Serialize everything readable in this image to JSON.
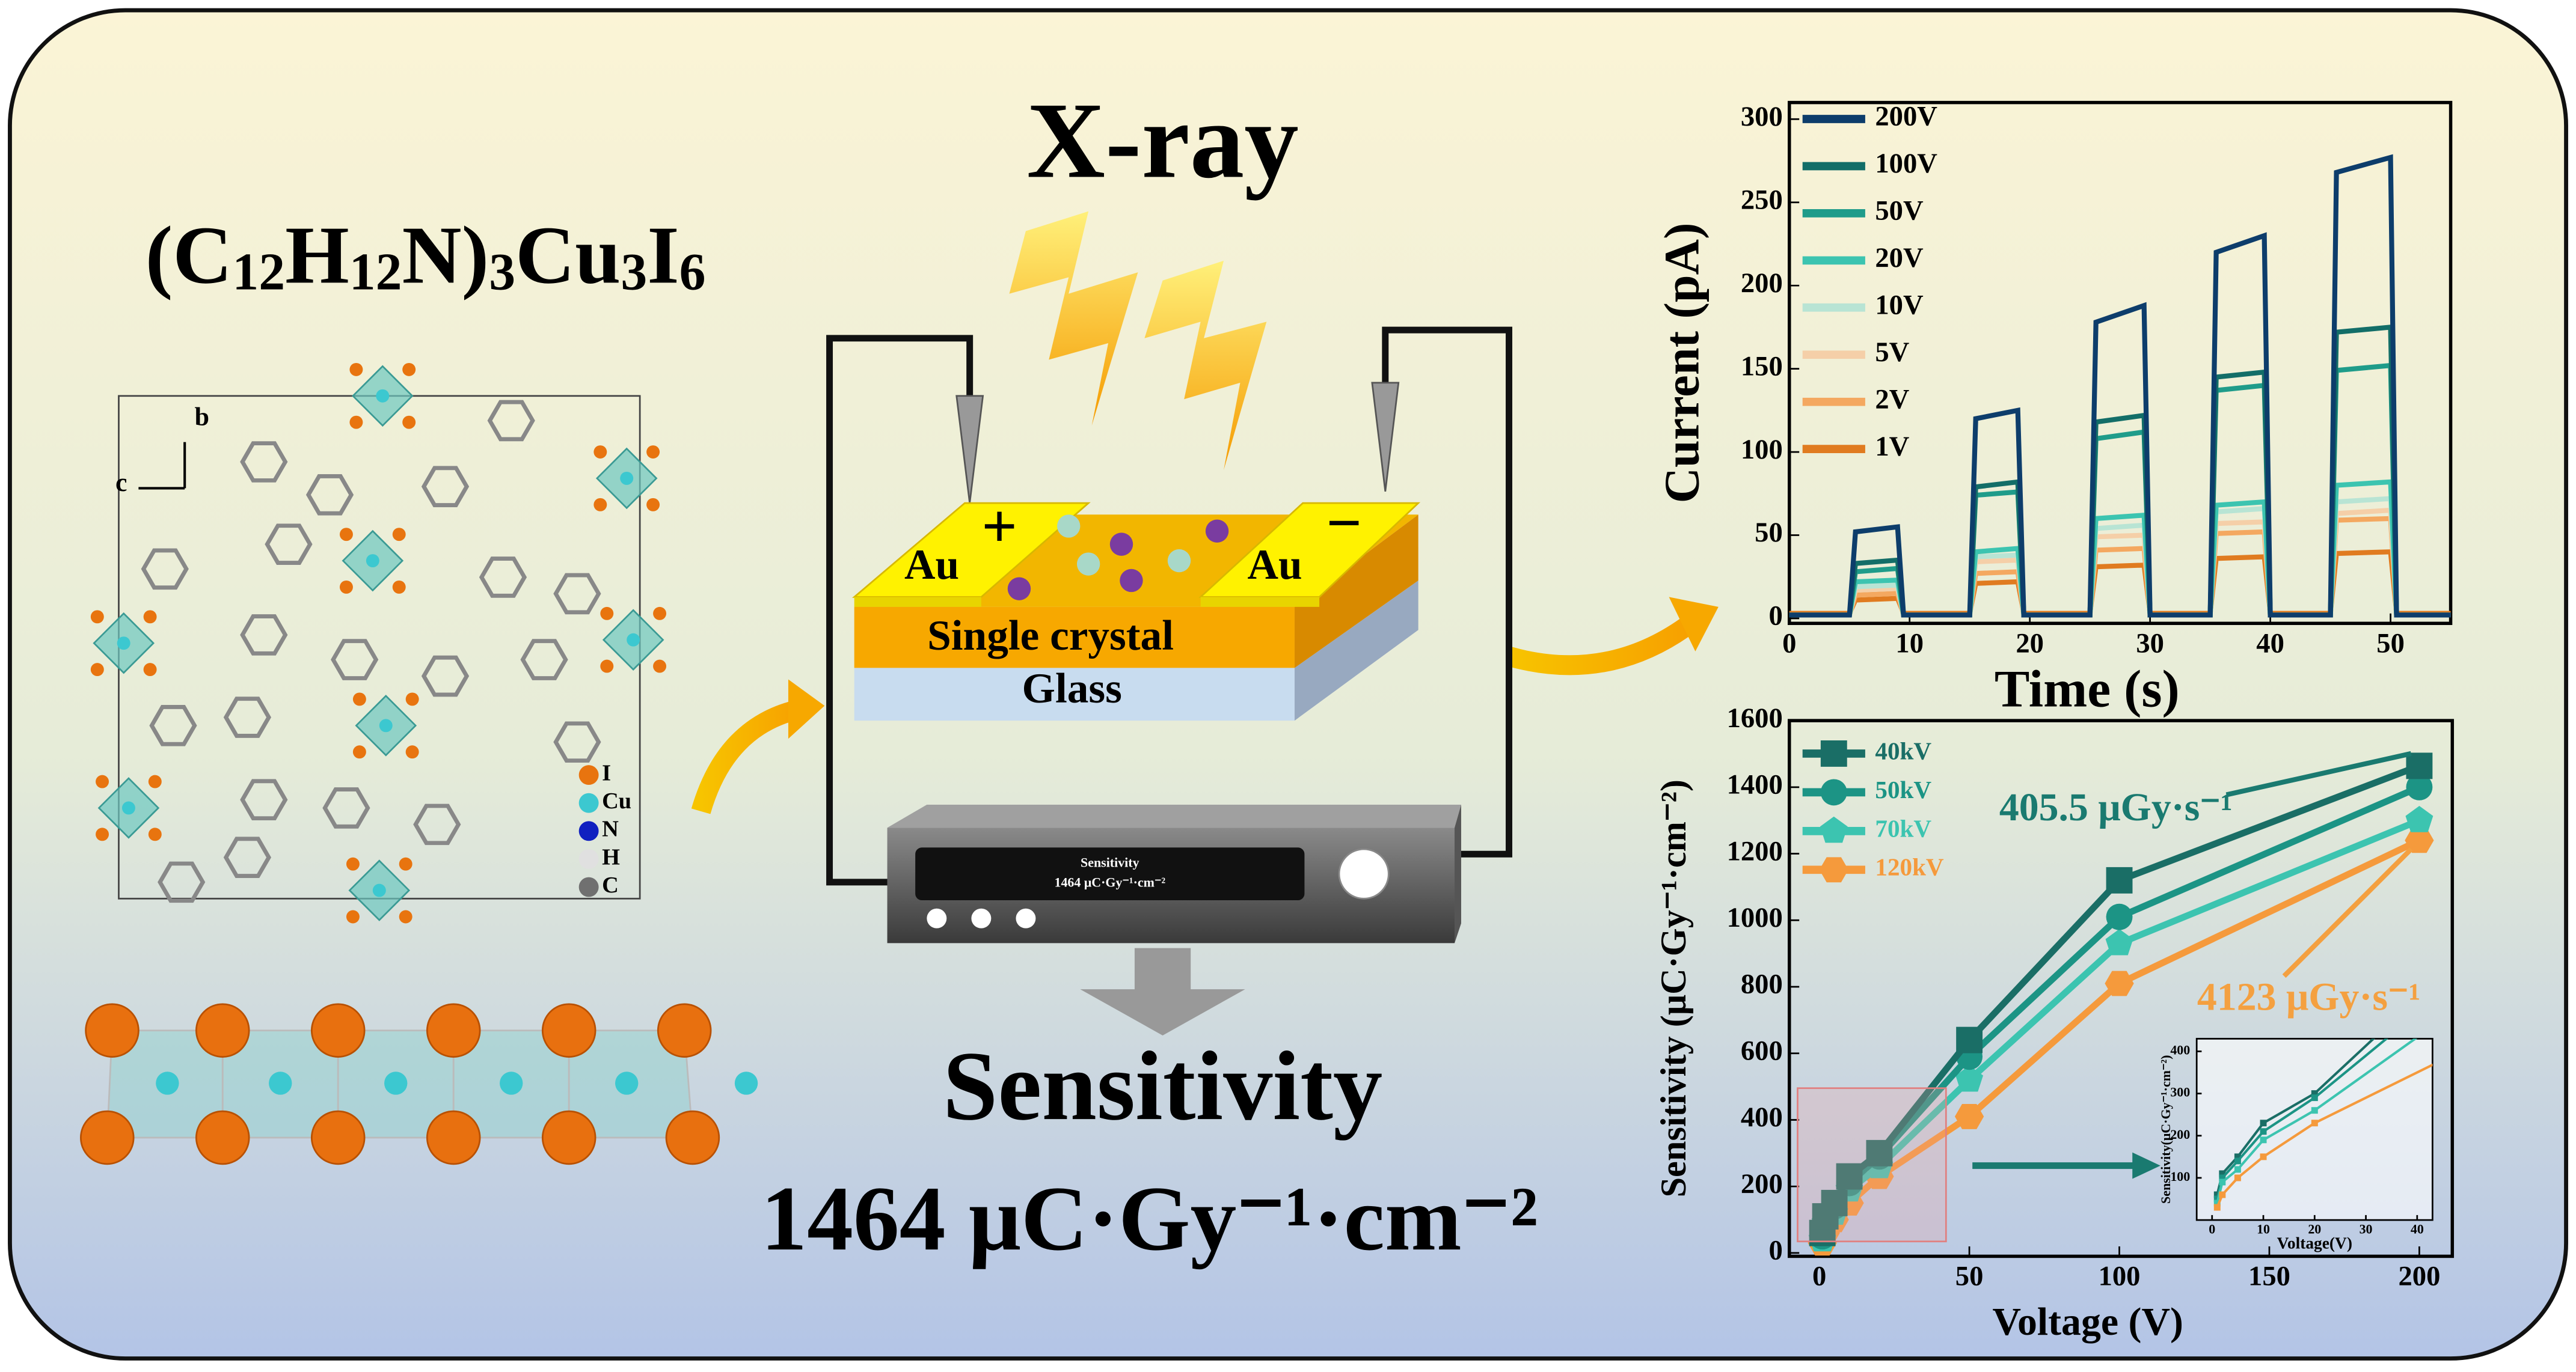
{
  "diagram": {
    "formula": [
      "(C",
      "12",
      "H",
      "12",
      "N)",
      "3",
      "Cu",
      "3",
      "I",
      "6"
    ],
    "axes": {
      "b": "b",
      "c": "c"
    },
    "atoms": [
      {
        "label": "I",
        "color": "#e8740f"
      },
      {
        "label": "Cu",
        "color": "#3cc8d0"
      },
      {
        "label": "N",
        "color": "#1020c0"
      },
      {
        "label": "H",
        "color": "#e0e0e0"
      },
      {
        "label": "C",
        "color": "#707070"
      }
    ],
    "source": "X-ray",
    "electrode_left": "Au",
    "electrode_right": "Au",
    "sign_left": "+",
    "sign_right": "−",
    "layer_crystal": "Single crystal",
    "layer_glass": "Glass",
    "screen_title": "Sensitivity",
    "screen_value": "1464 μC·Gy⁻¹·cm⁻²",
    "result_title": "Sensitivity",
    "result_value": "1464 μC·Gy⁻¹·cm⁻²"
  },
  "chart_data": [
    {
      "type": "line",
      "xlabel": "Time (s)",
      "ylabel": "Current (pA)",
      "xlim": [
        0,
        55
      ],
      "ylim": [
        -3,
        310
      ],
      "xticks": [
        0,
        10,
        20,
        30,
        40,
        50
      ],
      "yticks": [
        0,
        50,
        100,
        150,
        200,
        250,
        300
      ],
      "legend": "upper left",
      "x": [
        0,
        5,
        5.5,
        9,
        9.5,
        15,
        15.5,
        19,
        19.5,
        25,
        25.5,
        29.5,
        30,
        35,
        35.5,
        39.5,
        40,
        45,
        45.5,
        50,
        50.5,
        55
      ],
      "series": [
        {
          "name": "200V",
          "color": "#0d3d6b",
          "values": [
            2,
            2,
            52,
            55,
            2,
            2,
            120,
            125,
            2,
            2,
            178,
            188,
            2,
            2,
            220,
            230,
            2,
            2,
            268,
            277,
            2,
            2
          ]
        },
        {
          "name": "100V",
          "color": "#136e68",
          "values": [
            2,
            2,
            33,
            35,
            2,
            2,
            79,
            82,
            2,
            2,
            118,
            122,
            2,
            2,
            145,
            148,
            2,
            2,
            172,
            175,
            2,
            2
          ]
        },
        {
          "name": "50V",
          "color": "#1f9c8a",
          "values": [
            2,
            2,
            28,
            30,
            2,
            2,
            74,
            76,
            2,
            2,
            108,
            112,
            2,
            2,
            137,
            140,
            2,
            2,
            149,
            152,
            2,
            2
          ]
        },
        {
          "name": "20V",
          "color": "#3cc4b0",
          "values": [
            2,
            2,
            22,
            23,
            2,
            2,
            40,
            42,
            2,
            2,
            60,
            62,
            2,
            2,
            68,
            70,
            2,
            2,
            80,
            82,
            2,
            2
          ]
        },
        {
          "name": "10V",
          "color": "#b8e4d4",
          "values": [
            2,
            2,
            19,
            20,
            2,
            2,
            37,
            38,
            2,
            2,
            54,
            56,
            2,
            2,
            64,
            66,
            2,
            2,
            70,
            72,
            2,
            2
          ]
        },
        {
          "name": "5V",
          "color": "#f5cfa8",
          "values": [
            2,
            2,
            17,
            18,
            2,
            2,
            34,
            35,
            2,
            2,
            49,
            50,
            2,
            2,
            57,
            58,
            2,
            2,
            63,
            65,
            2,
            2
          ]
        },
        {
          "name": "2V",
          "color": "#f4a860",
          "values": [
            2,
            2,
            14,
            15,
            2,
            2,
            27,
            28,
            2,
            2,
            41,
            42,
            2,
            2,
            51,
            52,
            2,
            2,
            59,
            60,
            2,
            2
          ]
        },
        {
          "name": "1V",
          "color": "#e07b20",
          "values": [
            3,
            3,
            11,
            12,
            3,
            3,
            21,
            22,
            3,
            3,
            31,
            32,
            3,
            3,
            36,
            37,
            3,
            3,
            39,
            40,
            3,
            3
          ]
        }
      ]
    },
    {
      "type": "line",
      "xlabel": "Voltage (V)",
      "ylabel": "Sensitivity (μC·Gy⁻¹·cm⁻²)",
      "xlim": [
        -10,
        211
      ],
      "ylim": [
        -10,
        1600
      ],
      "xticks": [
        0,
        50,
        100,
        150,
        200
      ],
      "yticks": [
        0,
        200,
        400,
        600,
        800,
        1000,
        1200,
        1400,
        1600
      ],
      "legend": "upper left",
      "x": [
        1,
        2,
        5,
        10,
        20,
        50,
        100,
        200
      ],
      "series": [
        {
          "name": "40kV",
          "color": "#1a6e66",
          "marker": "square",
          "values": [
            60,
            110,
            150,
            230,
            300,
            640,
            1120,
            1464
          ]
        },
        {
          "name": "50kV",
          "color": "#1c9485",
          "marker": "circle",
          "values": [
            50,
            100,
            140,
            210,
            290,
            590,
            1010,
            1400
          ]
        },
        {
          "name": "70kV",
          "color": "#3cc4b0",
          "marker": "pentagon",
          "values": [
            40,
            90,
            120,
            190,
            260,
            520,
            930,
            1300
          ]
        },
        {
          "name": "120kV",
          "color": "#f59a3c",
          "marker": "hexagon",
          "values": [
            30,
            60,
            100,
            150,
            230,
            410,
            810,
            1240
          ]
        }
      ],
      "annotations": [
        {
          "text": "405.5 μGy·s⁻¹",
          "color": "#1a7a70"
        },
        {
          "text": "4123 μGy·s⁻¹",
          "color": "#f4a040"
        }
      ],
      "inset": {
        "xlabel": "Voltage(V)",
        "ylabel": "Sensitivity(μC·Gy⁻¹·cm⁻²)",
        "xlim": [
          -3,
          43
        ],
        "ylim": [
          0,
          430
        ],
        "xticks": [
          0,
          10,
          20,
          30,
          40
        ],
        "yticks": [
          100,
          200,
          300,
          400
        ]
      }
    }
  ]
}
